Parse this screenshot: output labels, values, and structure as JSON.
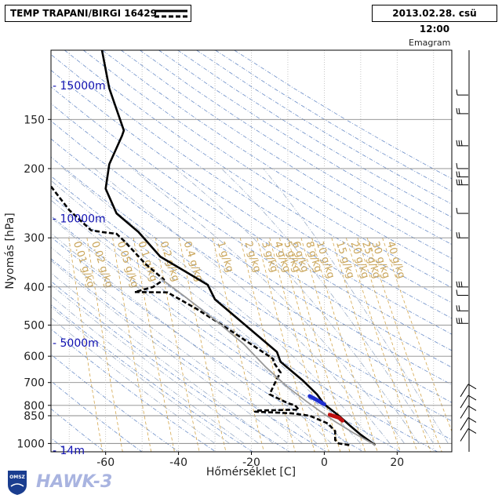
{
  "header": {
    "station_title": "TEMP TRAPANI/BIRGI 16429",
    "datetime": "2013.02.28. csü 12:00",
    "diagram_type": "Emagram"
  },
  "branding": {
    "logo_text": "OMSZ",
    "product": "HAWK-3"
  },
  "chart_data": {
    "type": "line",
    "xlabel": "Hőmérséklet [C]",
    "ylabel": "Nyomás [hPa]",
    "xlim": [
      -75,
      35
    ],
    "ylim_pressure_hpa": [
      1050,
      100
    ],
    "y_scale": "log",
    "x_ticks": [
      -60,
      -40,
      -20,
      0,
      20
    ],
    "pressure_ticks": [
      150,
      200,
      300,
      400,
      500,
      600,
      700,
      800,
      850,
      1000
    ],
    "height_labels": [
      {
        "label": "15000m",
        "p": 123
      },
      {
        "label": "10000m",
        "p": 268
      },
      {
        "label": "5000m",
        "p": 555
      },
      {
        "label": "14m",
        "p": 1040
      }
    ],
    "mixing_ratio_labels": [
      "0.01 g/kg",
      "0.02 g/kg",
      "0.05 g/kg",
      "0.1 g/kg",
      "0.2 g/kg",
      "0.4 g/kg",
      "1 g/kg",
      "2 g/kg",
      "3 g/kg",
      "4 g/kg",
      "5 g/kg",
      "6 g/kg",
      "8 g/kg",
      "10 g/kg",
      "15 g/kg",
      "20 g/kg",
      "25 g/kg",
      "30 g/kg",
      "40 g/kg"
    ],
    "mixing_ratio_values": [
      0.01,
      0.02,
      0.05,
      0.1,
      0.2,
      0.4,
      1,
      2,
      3,
      4,
      5,
      6,
      8,
      10,
      15,
      20,
      25,
      30,
      40
    ],
    "grid": true,
    "series": [
      {
        "name": "temperature",
        "style": "solid",
        "color": "#000000",
        "points": [
          [
            -61,
            100
          ],
          [
            -59,
            125
          ],
          [
            -55,
            160
          ],
          [
            -55.5,
            165
          ],
          [
            -59,
            195
          ],
          [
            -60,
            225
          ],
          [
            -57,
            260
          ],
          [
            -51,
            290
          ],
          [
            -45,
            335
          ],
          [
            -32,
            395
          ],
          [
            -30,
            430
          ],
          [
            -13,
            585
          ],
          [
            -12,
            620
          ],
          [
            -6,
            690
          ],
          [
            -2,
            750
          ],
          [
            0,
            795
          ],
          [
            4,
            850
          ],
          [
            7,
            900
          ],
          [
            10,
            950
          ],
          [
            14,
            1010
          ]
        ]
      },
      {
        "name": "dewpoint",
        "style": "dashed",
        "color": "#000000",
        "points": [
          [
            -75,
            222
          ],
          [
            -70,
            255
          ],
          [
            -64,
            287
          ],
          [
            -61,
            290
          ],
          [
            -57,
            293
          ],
          [
            -55,
            305
          ],
          [
            -49,
            350
          ],
          [
            -44,
            383
          ],
          [
            -47,
            400
          ],
          [
            -52,
            412
          ],
          [
            -43,
            413
          ],
          [
            -35,
            455
          ],
          [
            -28,
            500
          ],
          [
            -20,
            560
          ],
          [
            -14,
            610
          ],
          [
            -14,
            620
          ],
          [
            -12,
            660
          ],
          [
            -13,
            685
          ],
          [
            -15,
            750
          ],
          [
            -10,
            790
          ],
          [
            -8,
            800
          ],
          [
            -7,
            820
          ],
          [
            -19,
            825
          ],
          [
            -19,
            830
          ],
          [
            -9,
            838
          ],
          [
            -4,
            850
          ],
          [
            1,
            890
          ],
          [
            3,
            930
          ],
          [
            3,
            980
          ],
          [
            4,
            1000
          ],
          [
            7,
            1010
          ]
        ]
      },
      {
        "name": "parcel",
        "style": "solid",
        "color": "#999999",
        "points": [
          [
            14,
            1010
          ],
          [
            8,
            940
          ],
          [
            3,
            880
          ],
          [
            -1,
            830
          ],
          [
            -5,
            780
          ],
          [
            -10,
            720
          ],
          [
            -16,
            640
          ],
          [
            -22,
            560
          ],
          [
            -30,
            485
          ],
          [
            -38,
            425
          ],
          [
            -45,
            380
          ]
        ]
      }
    ],
    "highlight_segments": [
      {
        "color": "#1f2fd0",
        "points": [
          [
            -4,
            758
          ],
          [
            -1.5,
            780
          ],
          [
            0,
            795
          ]
        ]
      },
      {
        "color": "#c01010",
        "points": [
          [
            1.5,
            845
          ],
          [
            4,
            860
          ],
          [
            5,
            875
          ]
        ]
      }
    ],
    "wind_barb_pressures": [
      130,
      145,
      175,
      200,
      210,
      220,
      260,
      300,
      400,
      420,
      460,
      495,
      740,
      790,
      840,
      900,
      960
    ]
  }
}
